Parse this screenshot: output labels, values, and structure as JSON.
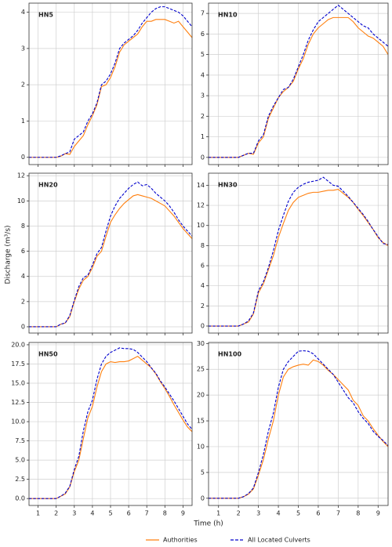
{
  "xlabel": "Time (h)",
  "ylabel": "Discharge (m³/s)",
  "chart_data": [
    {
      "type": "line",
      "title": "HN5",
      "xlim": [
        0.5,
        9.5
      ],
      "xticks": [
        1,
        2,
        3,
        4,
        5,
        6,
        7,
        8,
        9
      ],
      "ylim": [
        -0.2,
        4.25
      ],
      "yticks": [
        0,
        1,
        2,
        3,
        4
      ],
      "grid": true,
      "x": [
        0.5,
        0.75,
        1,
        1.25,
        1.5,
        1.75,
        2,
        2.25,
        2.5,
        2.75,
        3,
        3.25,
        3.5,
        3.75,
        4,
        4.25,
        4.5,
        4.75,
        5,
        5.25,
        5.5,
        5.75,
        6,
        6.25,
        6.5,
        6.75,
        7,
        7.25,
        7.5,
        7.75,
        8,
        8.25,
        8.5,
        8.75,
        9,
        9.25,
        9.5
      ],
      "series": [
        {
          "name": "Authorities",
          "color": "#ff7f0e",
          "dash": false,
          "values": [
            0,
            0,
            0,
            0,
            0,
            0,
            0,
            0.03,
            0.1,
            0.08,
            0.3,
            0.45,
            0.6,
            0.9,
            1.15,
            1.45,
            1.95,
            2.0,
            2.2,
            2.5,
            2.9,
            3.1,
            3.2,
            3.3,
            3.4,
            3.6,
            3.75,
            3.75,
            3.8,
            3.8,
            3.8,
            3.75,
            3.7,
            3.75,
            3.6,
            3.45,
            3.3
          ]
        },
        {
          "name": "All Located Culverts",
          "color": "#0000cc",
          "dash": true,
          "values": [
            0,
            0,
            0,
            0,
            0,
            0,
            0,
            0.04,
            0.1,
            0.15,
            0.5,
            0.6,
            0.7,
            1.0,
            1.2,
            1.5,
            2.0,
            2.1,
            2.3,
            2.6,
            3.0,
            3.15,
            3.25,
            3.35,
            3.5,
            3.7,
            3.85,
            4.0,
            4.1,
            4.15,
            4.15,
            4.1,
            4.05,
            4.0,
            3.9,
            3.75,
            3.6
          ]
        }
      ]
    },
    {
      "type": "line",
      "title": "HN10",
      "xlim": [
        0.5,
        9.5
      ],
      "xticks": [
        1,
        2,
        3,
        4,
        5,
        6,
        7,
        8,
        9
      ],
      "ylim": [
        -0.35,
        7.5
      ],
      "yticks": [
        0,
        1,
        2,
        3,
        4,
        5,
        6,
        7
      ],
      "grid": true,
      "x": [
        0.5,
        0.75,
        1,
        1.25,
        1.5,
        1.75,
        2,
        2.25,
        2.5,
        2.75,
        3,
        3.25,
        3.5,
        3.75,
        4,
        4.25,
        4.5,
        4.75,
        5,
        5.25,
        5.5,
        5.75,
        6,
        6.25,
        6.5,
        6.75,
        7,
        7.25,
        7.5,
        7.75,
        8,
        8.25,
        8.5,
        8.75,
        9,
        9.25,
        9.5
      ],
      "series": [
        {
          "name": "Authorities",
          "color": "#ff7f0e",
          "dash": false,
          "values": [
            0,
            0,
            0,
            0,
            0,
            0,
            0,
            0.1,
            0.2,
            0.15,
            0.7,
            1.0,
            1.9,
            2.4,
            2.9,
            3.2,
            3.4,
            3.7,
            4.3,
            4.8,
            5.5,
            6.0,
            6.3,
            6.5,
            6.7,
            6.8,
            6.8,
            6.8,
            6.8,
            6.6,
            6.3,
            6.1,
            5.9,
            5.8,
            5.6,
            5.4,
            5.0
          ]
        },
        {
          "name": "All Located Culverts",
          "color": "#0000cc",
          "dash": true,
          "values": [
            0,
            0,
            0,
            0,
            0,
            0,
            0,
            0.1,
            0.2,
            0.2,
            0.8,
            1.1,
            2.0,
            2.5,
            2.9,
            3.3,
            3.4,
            3.8,
            4.4,
            5.0,
            5.7,
            6.2,
            6.6,
            6.8,
            7.0,
            7.2,
            7.4,
            7.2,
            7.0,
            6.8,
            6.6,
            6.4,
            6.3,
            6.0,
            5.8,
            5.6,
            5.4
          ]
        }
      ]
    },
    {
      "type": "line",
      "title": "HN20",
      "xlim": [
        0.5,
        9.5
      ],
      "xticks": [
        1,
        2,
        3,
        4,
        5,
        6,
        7,
        8,
        9
      ],
      "ylim": [
        -0.5,
        12.2
      ],
      "yticks": [
        0,
        2,
        4,
        6,
        8,
        10,
        12
      ],
      "grid": true,
      "x": [
        0.5,
        0.75,
        1,
        1.25,
        1.5,
        1.75,
        2,
        2.25,
        2.5,
        2.75,
        3,
        3.25,
        3.5,
        3.75,
        4,
        4.25,
        4.5,
        4.75,
        5,
        5.25,
        5.5,
        5.75,
        6,
        6.25,
        6.5,
        6.75,
        7,
        7.25,
        7.5,
        7.75,
        8,
        8.25,
        8.5,
        8.75,
        9,
        9.25,
        9.5
      ],
      "series": [
        {
          "name": "Authorities",
          "color": "#ff7f0e",
          "dash": false,
          "values": [
            0,
            0,
            0,
            0,
            0,
            0,
            0,
            0.2,
            0.3,
            0.8,
            2.0,
            3.0,
            3.7,
            4.0,
            4.7,
            5.6,
            6.0,
            7.2,
            8.3,
            8.9,
            9.4,
            9.8,
            10.1,
            10.4,
            10.5,
            10.4,
            10.3,
            10.2,
            10.0,
            9.8,
            9.6,
            9.2,
            8.8,
            8.3,
            7.8,
            7.4,
            7.0
          ]
        },
        {
          "name": "All Located Culverts",
          "color": "#0000cc",
          "dash": true,
          "values": [
            0,
            0,
            0,
            0,
            0,
            0,
            0,
            0.2,
            0.3,
            0.9,
            2.1,
            3.2,
            3.9,
            4.1,
            4.9,
            5.8,
            6.3,
            7.6,
            8.8,
            9.6,
            10.2,
            10.6,
            11.0,
            11.3,
            11.5,
            11.2,
            11.3,
            11.0,
            10.6,
            10.3,
            10.0,
            9.6,
            9.1,
            8.5,
            8.0,
            7.6,
            7.2
          ]
        }
      ]
    },
    {
      "type": "line",
      "title": "HN30",
      "xlim": [
        0.5,
        9.5
      ],
      "xticks": [
        1,
        2,
        3,
        4,
        5,
        6,
        7,
        8,
        9
      ],
      "ylim": [
        -0.7,
        15.2
      ],
      "yticks": [
        0,
        2,
        4,
        6,
        8,
        10,
        12,
        14
      ],
      "grid": true,
      "x": [
        0.5,
        0.75,
        1,
        1.25,
        1.5,
        1.75,
        2,
        2.25,
        2.5,
        2.75,
        3,
        3.25,
        3.5,
        3.75,
        4,
        4.25,
        4.5,
        4.75,
        5,
        5.25,
        5.5,
        5.75,
        6,
        6.25,
        6.5,
        6.75,
        7,
        7.25,
        7.5,
        7.75,
        8,
        8.25,
        8.5,
        8.75,
        9,
        9.25,
        9.5
      ],
      "series": [
        {
          "name": "Authorities",
          "color": "#ff7f0e",
          "dash": false,
          "values": [
            0,
            0,
            0,
            0,
            0,
            0,
            0,
            0.2,
            0.4,
            1.2,
            3.3,
            4.2,
            5.6,
            7.0,
            8.8,
            10.2,
            11.5,
            12.3,
            12.8,
            13.0,
            13.2,
            13.3,
            13.3,
            13.4,
            13.5,
            13.5,
            13.6,
            13.2,
            12.8,
            12.3,
            11.6,
            11.0,
            10.3,
            9.6,
            8.8,
            8.3,
            8.0
          ]
        },
        {
          "name": "All Located Culverts",
          "color": "#0000cc",
          "dash": true,
          "values": [
            0,
            0,
            0,
            0,
            0,
            0,
            0,
            0.2,
            0.5,
            1.3,
            3.5,
            4.4,
            5.8,
            7.5,
            9.5,
            11.0,
            12.4,
            13.3,
            13.8,
            14.1,
            14.3,
            14.4,
            14.5,
            14.8,
            14.4,
            14.0,
            13.9,
            13.4,
            12.9,
            12.3,
            11.7,
            11.1,
            10.4,
            9.6,
            8.9,
            8.2,
            8.1
          ]
        }
      ]
    },
    {
      "type": "line",
      "title": "HN50",
      "xlim": [
        0.5,
        9.5
      ],
      "xticks": [
        1,
        2,
        3,
        4,
        5,
        6,
        7,
        8,
        9
      ],
      "ylim": [
        -0.9,
        20.3
      ],
      "yticks": [
        {
          "value": 0,
          "label": "0.0"
        },
        2.5,
        {
          "value": 5,
          "label": "5.0"
        },
        7.5,
        {
          "value": 10,
          "label": "10.0"
        },
        12.5,
        {
          "value": 15,
          "label": "15.0"
        },
        17.5,
        {
          "value": 20,
          "label": "20.0"
        }
      ],
      "grid": true,
      "x": [
        0.5,
        0.75,
        1,
        1.25,
        1.5,
        1.75,
        2,
        2.25,
        2.5,
        2.75,
        3,
        3.25,
        3.5,
        3.75,
        4,
        4.25,
        4.5,
        4.75,
        5,
        5.25,
        5.5,
        5.75,
        6,
        6.25,
        6.5,
        6.75,
        7,
        7.25,
        7.5,
        7.75,
        8,
        8.25,
        8.5,
        8.75,
        9,
        9.25,
        9.5
      ],
      "series": [
        {
          "name": "Authorities",
          "color": "#ff7f0e",
          "dash": false,
          "values": [
            0,
            0,
            0,
            0,
            0,
            0,
            0,
            0.3,
            0.6,
            1.5,
            3.5,
            5.0,
            7.8,
            10.5,
            12.0,
            14.5,
            16.5,
            17.5,
            17.8,
            17.7,
            17.8,
            17.8,
            17.9,
            18.2,
            18.5,
            18.0,
            17.5,
            17.0,
            16.2,
            15.2,
            14.3,
            13.3,
            12.2,
            11.2,
            10.2,
            9.3,
            8.7
          ]
        },
        {
          "name": "All Located Culverts",
          "color": "#0000cc",
          "dash": true,
          "values": [
            0,
            0,
            0,
            0,
            0,
            0,
            0,
            0.3,
            0.7,
            1.6,
            3.8,
            5.5,
            8.8,
            11.3,
            12.8,
            15.5,
            17.5,
            18.5,
            19.0,
            19.3,
            19.6,
            19.5,
            19.5,
            19.4,
            19.0,
            18.4,
            17.8,
            17.0,
            16.3,
            15.3,
            14.5,
            13.6,
            12.7,
            11.7,
            10.7,
            9.7,
            9.0
          ]
        }
      ]
    },
    {
      "type": "line",
      "title": "HN100",
      "xlim": [
        0.5,
        9.5
      ],
      "xticks": [
        1,
        2,
        3,
        4,
        5,
        6,
        7,
        8,
        9
      ],
      "ylim": [
        -1.4,
        30.2
      ],
      "yticks": [
        0,
        5,
        10,
        15,
        20,
        25,
        30
      ],
      "grid": true,
      "x": [
        0.5,
        0.75,
        1,
        1.25,
        1.5,
        1.75,
        2,
        2.25,
        2.5,
        2.75,
        3,
        3.25,
        3.5,
        3.75,
        4,
        4.25,
        4.5,
        4.75,
        5,
        5.25,
        5.5,
        5.75,
        6,
        6.25,
        6.5,
        6.75,
        7,
        7.25,
        7.5,
        7.75,
        8,
        8.25,
        8.5,
        8.75,
        9,
        9.25,
        9.5
      ],
      "series": [
        {
          "name": "Authorities",
          "color": "#ff7f0e",
          "dash": false,
          "values": [
            0,
            0,
            0,
            0,
            0,
            0,
            0,
            0.3,
            0.8,
            1.8,
            4.5,
            7.5,
            11.5,
            15.0,
            20.0,
            23.5,
            25.0,
            25.5,
            25.8,
            26.0,
            25.8,
            26.8,
            26.5,
            25.8,
            24.8,
            24.0,
            23.0,
            22.0,
            21.0,
            19.0,
            18.0,
            16.0,
            15.0,
            13.5,
            12.2,
            11.0,
            10.0
          ]
        },
        {
          "name": "All Located Culverts",
          "color": "#0000cc",
          "dash": true,
          "values": [
            0,
            0,
            0,
            0,
            0,
            0,
            0,
            0.3,
            0.9,
            2.0,
            5.0,
            8.5,
            13.0,
            16.5,
            21.5,
            25.0,
            26.5,
            27.5,
            28.5,
            28.6,
            28.5,
            28.0,
            27.0,
            26.0,
            25.0,
            24.0,
            22.5,
            21.0,
            19.5,
            18.5,
            16.8,
            15.5,
            14.5,
            13.0,
            12.0,
            11.2,
            10.2
          ]
        }
      ]
    }
  ]
}
